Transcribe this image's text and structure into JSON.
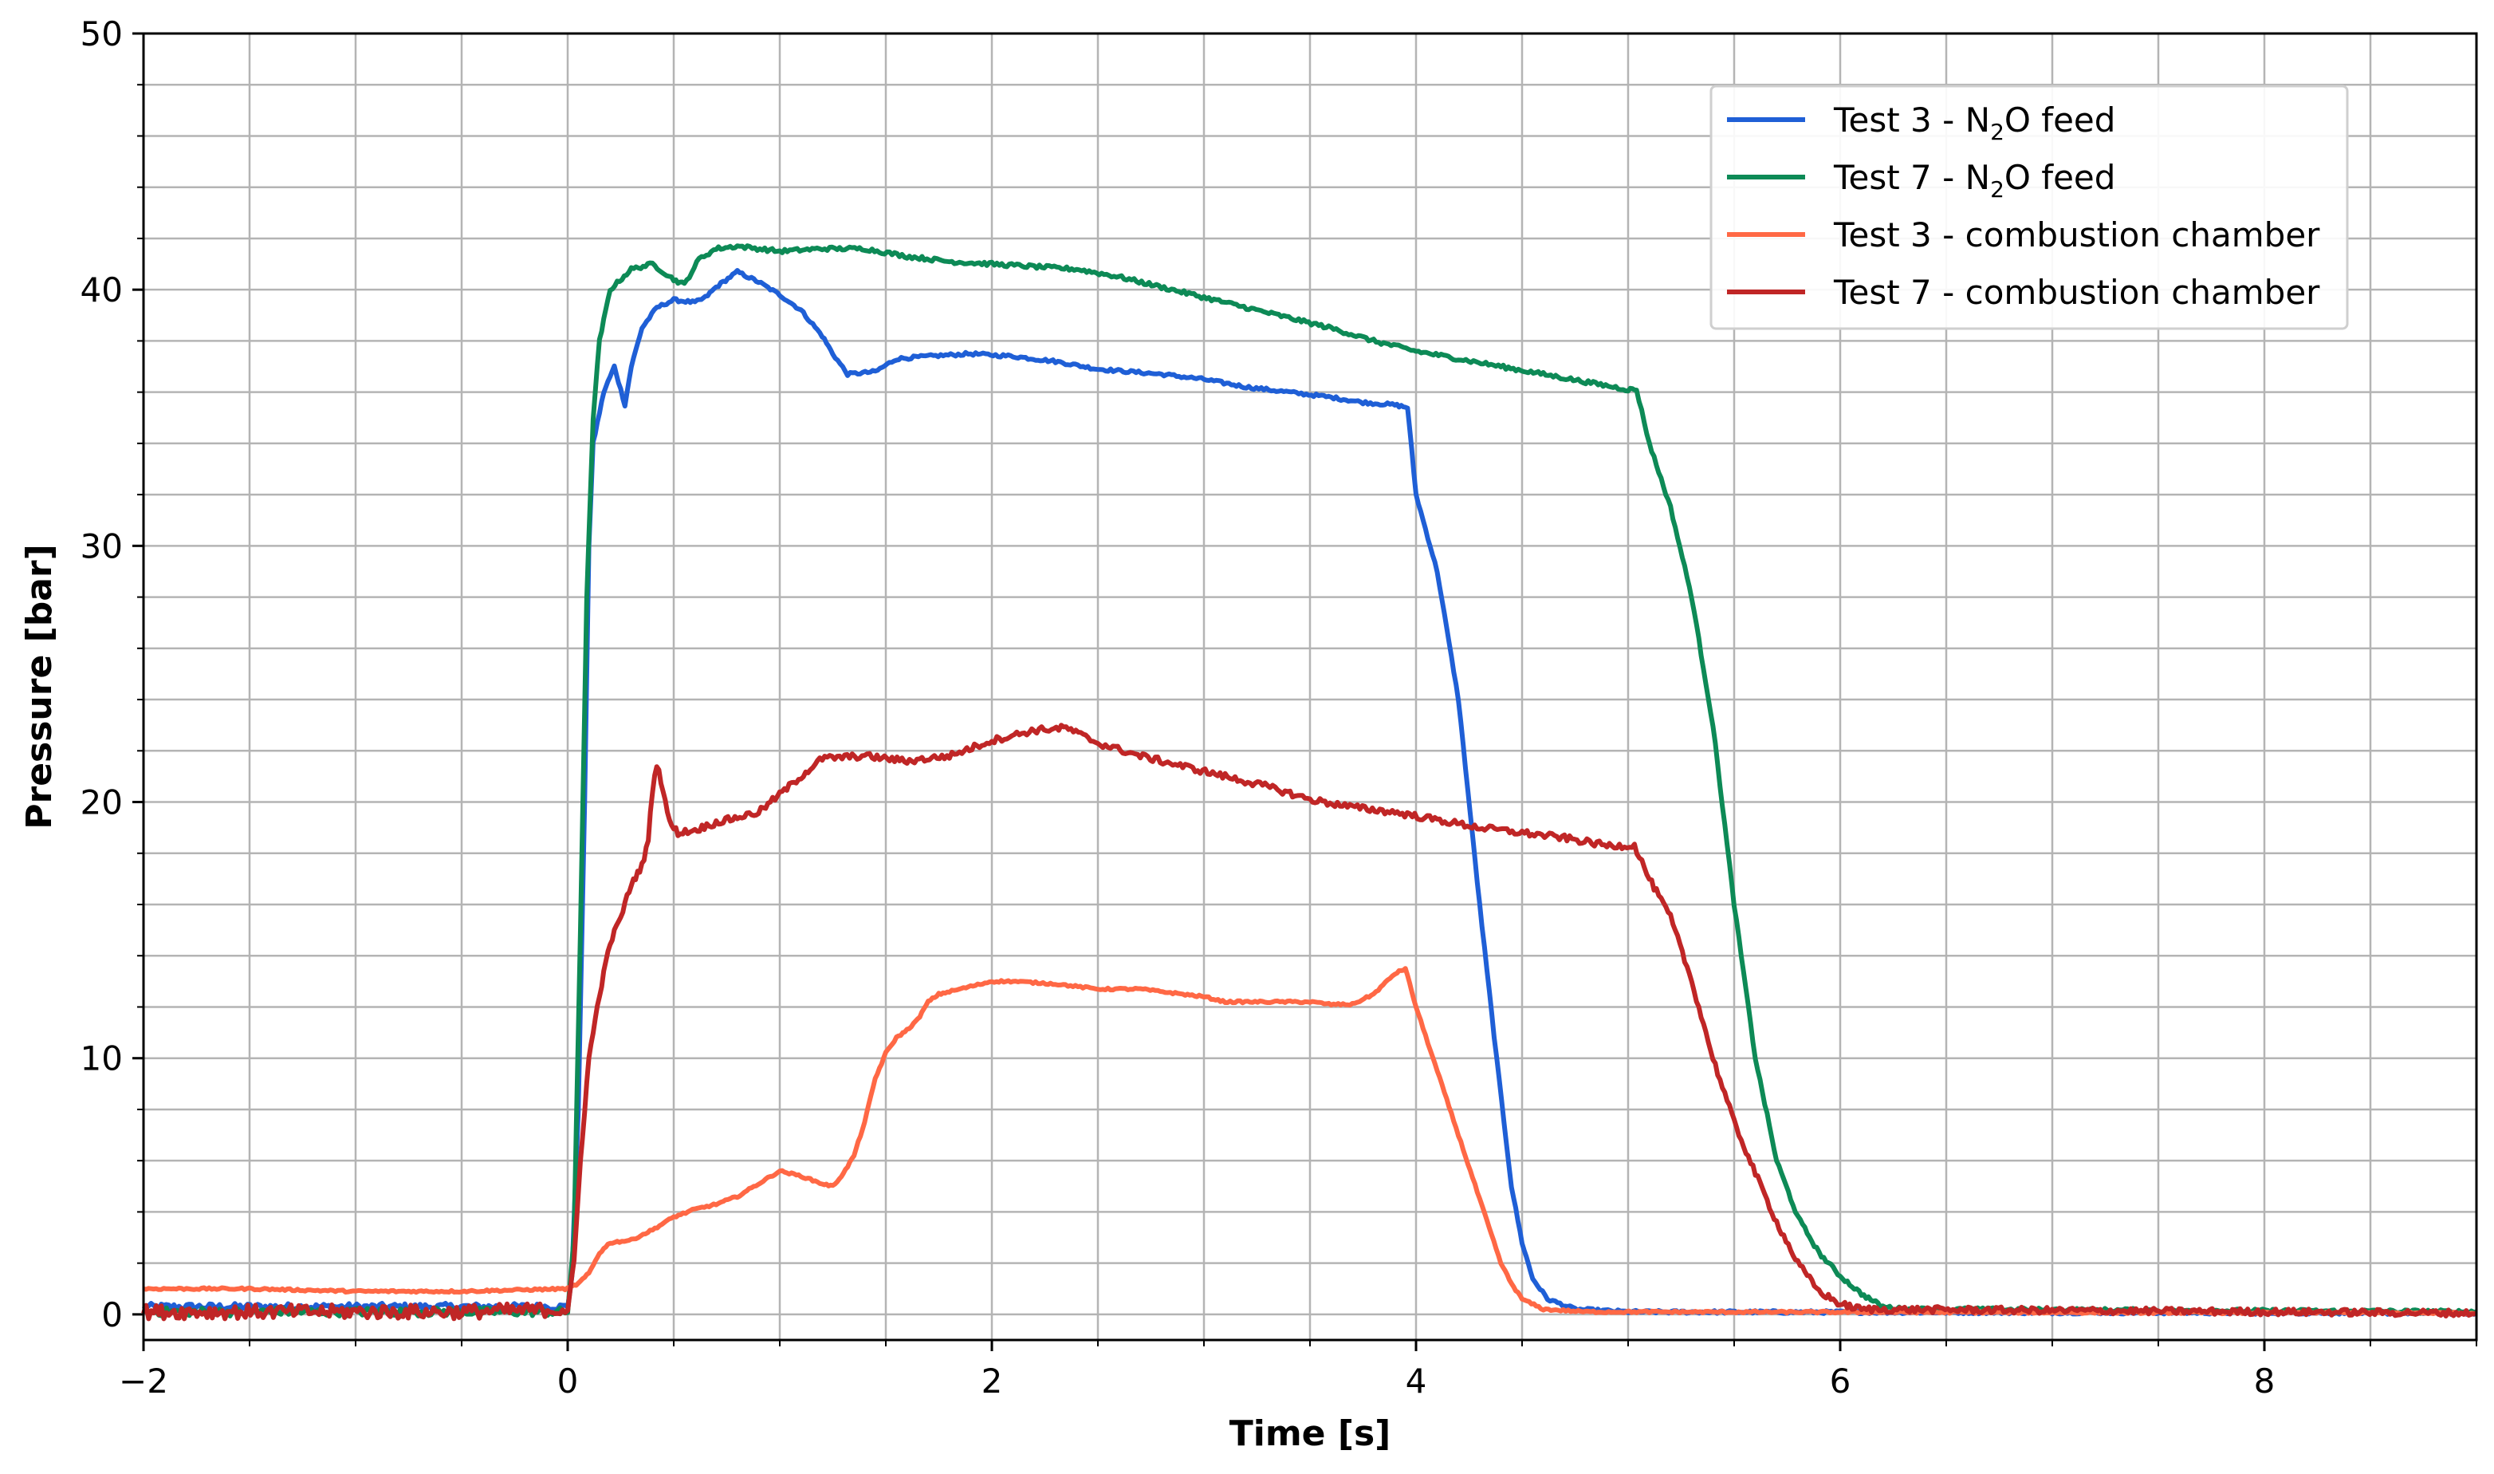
{
  "chart_data": {
    "type": "line",
    "xlabel": "Time [s]",
    "ylabel": "Pressure [bar]",
    "xlim": [
      -2,
      9
    ],
    "ylim": [
      -1,
      50
    ],
    "x_ticks": [
      -2,
      0,
      2,
      4,
      6,
      8
    ],
    "x_tick_labels": [
      "−2",
      "0",
      "2",
      "4",
      "6",
      "8"
    ],
    "y_ticks": [
      0,
      10,
      20,
      30,
      40,
      50
    ],
    "y_tick_labels": [
      "0",
      "10",
      "20",
      "30",
      "40",
      "50"
    ],
    "grid": true,
    "minor_grid_x_step": 0.5,
    "minor_grid_y_step": 2,
    "legend_position": "top-right",
    "series": [
      {
        "name_main": "Test 3 - N",
        "name_sub": "2",
        "name_tail": "O feed",
        "color": "#1f5fd6",
        "noise": 0.12,
        "points": [
          [
            -2,
            0.3
          ],
          [
            -0.6,
            0.3
          ],
          [
            0.0,
            0.3
          ],
          [
            0.02,
            1.5
          ],
          [
            0.05,
            8
          ],
          [
            0.08,
            20
          ],
          [
            0.1,
            30
          ],
          [
            0.12,
            34
          ],
          [
            0.17,
            36
          ],
          [
            0.22,
            37
          ],
          [
            0.27,
            35.5
          ],
          [
            0.3,
            37
          ],
          [
            0.35,
            38.5
          ],
          [
            0.42,
            39.3
          ],
          [
            0.5,
            39.6
          ],
          [
            0.6,
            39.5
          ],
          [
            0.65,
            39.7
          ],
          [
            0.7,
            40.1
          ],
          [
            0.8,
            40.7
          ],
          [
            0.9,
            40.3
          ],
          [
            1.0,
            39.8
          ],
          [
            1.1,
            39.2
          ],
          [
            1.2,
            38.2
          ],
          [
            1.25,
            37.5
          ],
          [
            1.32,
            36.7
          ],
          [
            1.45,
            36.8
          ],
          [
            1.55,
            37.3
          ],
          [
            1.7,
            37.4
          ],
          [
            1.9,
            37.5
          ],
          [
            2.1,
            37.4
          ],
          [
            2.3,
            37.2
          ],
          [
            2.5,
            36.9
          ],
          [
            2.8,
            36.7
          ],
          [
            3.0,
            36.5
          ],
          [
            3.2,
            36.2
          ],
          [
            3.4,
            36.0
          ],
          [
            3.6,
            35.8
          ],
          [
            3.75,
            35.6
          ],
          [
            3.9,
            35.5
          ],
          [
            3.96,
            35.4
          ],
          [
            4.0,
            32
          ],
          [
            4.1,
            29
          ],
          [
            4.2,
            24
          ],
          [
            4.3,
            16
          ],
          [
            4.38,
            10
          ],
          [
            4.45,
            5
          ],
          [
            4.5,
            2.8
          ],
          [
            4.55,
            1.4
          ],
          [
            4.62,
            0.6
          ],
          [
            4.75,
            0.2
          ],
          [
            5.0,
            0.1
          ],
          [
            9.0,
            0.05
          ]
        ]
      },
      {
        "name_main": "Test 7 - N",
        "name_sub": "2",
        "name_tail": "O feed",
        "color": "#0d8a56",
        "noise": 0.15,
        "points": [
          [
            -2,
            0.1
          ],
          [
            -0.5,
            0.1
          ],
          [
            0.0,
            0.1
          ],
          [
            0.03,
            3
          ],
          [
            0.06,
            15
          ],
          [
            0.09,
            28
          ],
          [
            0.12,
            35
          ],
          [
            0.15,
            38
          ],
          [
            0.2,
            40
          ],
          [
            0.3,
            40.8
          ],
          [
            0.4,
            41
          ],
          [
            0.5,
            40.4
          ],
          [
            0.55,
            40.2
          ],
          [
            0.62,
            41.2
          ],
          [
            0.7,
            41.6
          ],
          [
            0.8,
            41.7
          ],
          [
            1.0,
            41.5
          ],
          [
            1.2,
            41.6
          ],
          [
            1.4,
            41.6
          ],
          [
            1.6,
            41.3
          ],
          [
            1.8,
            41.1
          ],
          [
            2.0,
            41.0
          ],
          [
            2.4,
            40.8
          ],
          [
            2.6,
            40.5
          ],
          [
            2.8,
            40.1
          ],
          [
            3.0,
            39.7
          ],
          [
            3.2,
            39.3
          ],
          [
            3.4,
            38.9
          ],
          [
            3.6,
            38.5
          ],
          [
            3.8,
            38.0
          ],
          [
            4.0,
            37.6
          ],
          [
            4.2,
            37.3
          ],
          [
            4.4,
            37.0
          ],
          [
            4.6,
            36.7
          ],
          [
            4.8,
            36.4
          ],
          [
            5.0,
            36.1
          ],
          [
            5.04,
            36.1
          ],
          [
            5.1,
            34
          ],
          [
            5.2,
            31.5
          ],
          [
            5.3,
            28
          ],
          [
            5.4,
            23
          ],
          [
            5.5,
            16
          ],
          [
            5.6,
            10
          ],
          [
            5.7,
            6
          ],
          [
            5.8,
            3.8
          ],
          [
            5.9,
            2.4
          ],
          [
            6.0,
            1.5
          ],
          [
            6.1,
            0.8
          ],
          [
            6.2,
            0.3
          ],
          [
            6.3,
            0.2
          ],
          [
            9.0,
            0.1
          ]
        ]
      },
      {
        "name_main": "Test 3 - combustion chamber",
        "name_sub": "",
        "name_tail": "",
        "color": "#ff6845",
        "noise": 0.08,
        "points": [
          [
            -2,
            1.0
          ],
          [
            -1.5,
            1.0
          ],
          [
            -1,
            0.9
          ],
          [
            -0.5,
            0.9
          ],
          [
            0.0,
            1.0
          ],
          [
            0.05,
            1.2
          ],
          [
            0.1,
            1.6
          ],
          [
            0.15,
            2.4
          ],
          [
            0.2,
            2.8
          ],
          [
            0.3,
            2.9
          ],
          [
            0.4,
            3.3
          ],
          [
            0.5,
            3.8
          ],
          [
            0.6,
            4.1
          ],
          [
            0.7,
            4.3
          ],
          [
            0.8,
            4.6
          ],
          [
            0.9,
            5.1
          ],
          [
            1.0,
            5.6
          ],
          [
            1.1,
            5.4
          ],
          [
            1.2,
            5.1
          ],
          [
            1.25,
            5.0
          ],
          [
            1.3,
            5.5
          ],
          [
            1.35,
            6.2
          ],
          [
            1.4,
            7.5
          ],
          [
            1.45,
            9.2
          ],
          [
            1.5,
            10.2
          ],
          [
            1.55,
            10.8
          ],
          [
            1.6,
            11.1
          ],
          [
            1.65,
            11.5
          ],
          [
            1.7,
            12.2
          ],
          [
            1.75,
            12.5
          ],
          [
            1.8,
            12.6
          ],
          [
            1.9,
            12.8
          ],
          [
            2.0,
            13.0
          ],
          [
            2.1,
            13.0
          ],
          [
            2.3,
            12.9
          ],
          [
            2.5,
            12.7
          ],
          [
            2.7,
            12.7
          ],
          [
            2.9,
            12.5
          ],
          [
            3.0,
            12.4
          ],
          [
            3.1,
            12.2
          ],
          [
            3.3,
            12.2
          ],
          [
            3.5,
            12.2
          ],
          [
            3.6,
            12.1
          ],
          [
            3.7,
            12.1
          ],
          [
            3.8,
            12.5
          ],
          [
            3.9,
            13.3
          ],
          [
            3.95,
            13.5
          ],
          [
            4.0,
            12
          ],
          [
            4.1,
            9.5
          ],
          [
            4.2,
            7
          ],
          [
            4.3,
            4.5
          ],
          [
            4.4,
            2.0
          ],
          [
            4.45,
            1.2
          ],
          [
            4.5,
            0.6
          ],
          [
            4.6,
            0.2
          ],
          [
            4.8,
            0.1
          ],
          [
            9.0,
            0.05
          ]
        ]
      },
      {
        "name_main": "Test 7 - combustion chamber",
        "name_sub": "",
        "name_tail": "",
        "color": "#c02626",
        "noise": 0.25,
        "points": [
          [
            -2,
            0.1
          ],
          [
            -0.5,
            0.1
          ],
          [
            0.0,
            0.2
          ],
          [
            0.03,
            2
          ],
          [
            0.06,
            6
          ],
          [
            0.1,
            10
          ],
          [
            0.15,
            12.5
          ],
          [
            0.2,
            14.5
          ],
          [
            0.25,
            15.5
          ],
          [
            0.3,
            16.8
          ],
          [
            0.35,
            17.5
          ],
          [
            0.38,
            18.5
          ],
          [
            0.4,
            20.5
          ],
          [
            0.42,
            21.5
          ],
          [
            0.45,
            20.5
          ],
          [
            0.48,
            19.2
          ],
          [
            0.52,
            18.8
          ],
          [
            0.6,
            18.9
          ],
          [
            0.7,
            19.2
          ],
          [
            0.8,
            19.4
          ],
          [
            0.9,
            19.6
          ],
          [
            1.0,
            20.3
          ],
          [
            1.1,
            21.0
          ],
          [
            1.2,
            21.7
          ],
          [
            1.4,
            21.8
          ],
          [
            1.6,
            21.6
          ],
          [
            1.8,
            21.8
          ],
          [
            2.0,
            22.4
          ],
          [
            2.2,
            22.8
          ],
          [
            2.35,
            22.9
          ],
          [
            2.5,
            22.3
          ],
          [
            2.7,
            21.8
          ],
          [
            2.9,
            21.4
          ],
          [
            3.1,
            21.0
          ],
          [
            3.3,
            20.6
          ],
          [
            3.5,
            20.1
          ],
          [
            3.7,
            19.8
          ],
          [
            3.9,
            19.6
          ],
          [
            4.1,
            19.3
          ],
          [
            4.3,
            19.0
          ],
          [
            4.5,
            18.8
          ],
          [
            4.7,
            18.6
          ],
          [
            4.9,
            18.3
          ],
          [
            5.03,
            18.3
          ],
          [
            5.1,
            17
          ],
          [
            5.2,
            15.5
          ],
          [
            5.3,
            13
          ],
          [
            5.4,
            10
          ],
          [
            5.5,
            7.5
          ],
          [
            5.6,
            5.5
          ],
          [
            5.7,
            3.6
          ],
          [
            5.8,
            2.0
          ],
          [
            5.9,
            0.9
          ],
          [
            6.0,
            0.4
          ],
          [
            6.1,
            0.2
          ],
          [
            9.0,
            0.05
          ]
        ]
      }
    ]
  }
}
